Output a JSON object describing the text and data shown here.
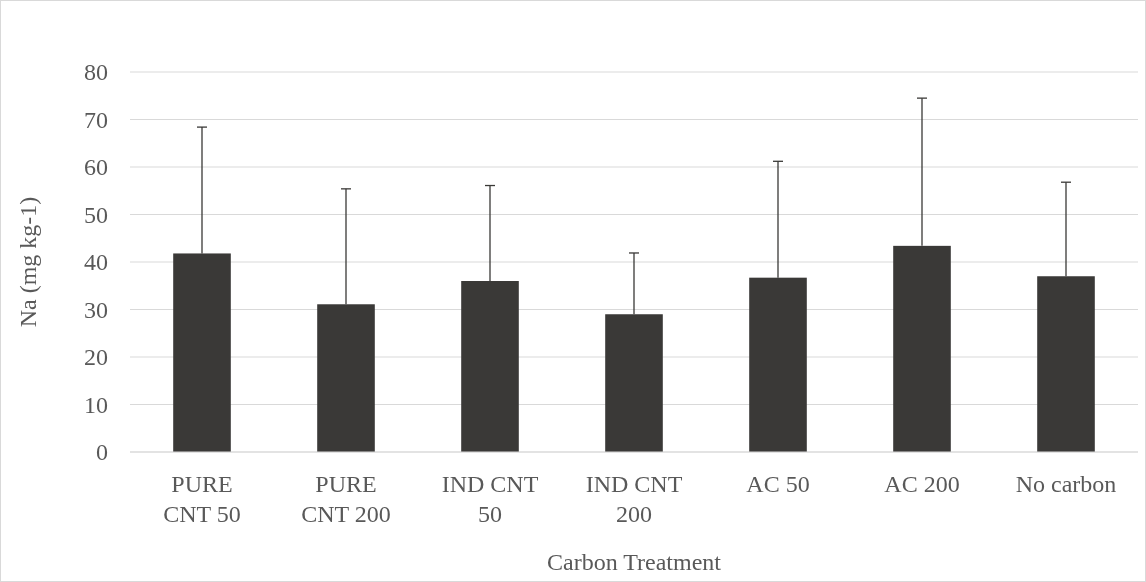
{
  "chart_data": {
    "type": "bar",
    "xlabel": "Carbon Treatment",
    "ylabel": "Na (mg kg-1)",
    "categories": [
      "PURE CNT 50",
      "PURE CNT 200",
      "IND CNT 50",
      "IND CNT 200",
      "AC 50",
      "AC 200",
      "No carbon"
    ],
    "values": [
      41.8,
      31.1,
      36,
      29,
      36.7,
      43.4,
      37
    ],
    "errors": [
      [
        41.8,
        68.4
      ],
      [
        31.1,
        55.4
      ],
      [
        36,
        56.1
      ],
      [
        29,
        41.9
      ],
      [
        36.7,
        61.2
      ],
      [
        43.4,
        74.5
      ],
      [
        37,
        56.8
      ]
    ],
    "color": "#3a3937",
    "ylim": [
      0,
      80
    ],
    "yticks": [
      0,
      10,
      20,
      30,
      40,
      50,
      60,
      70,
      80
    ],
    "grid": "y"
  }
}
